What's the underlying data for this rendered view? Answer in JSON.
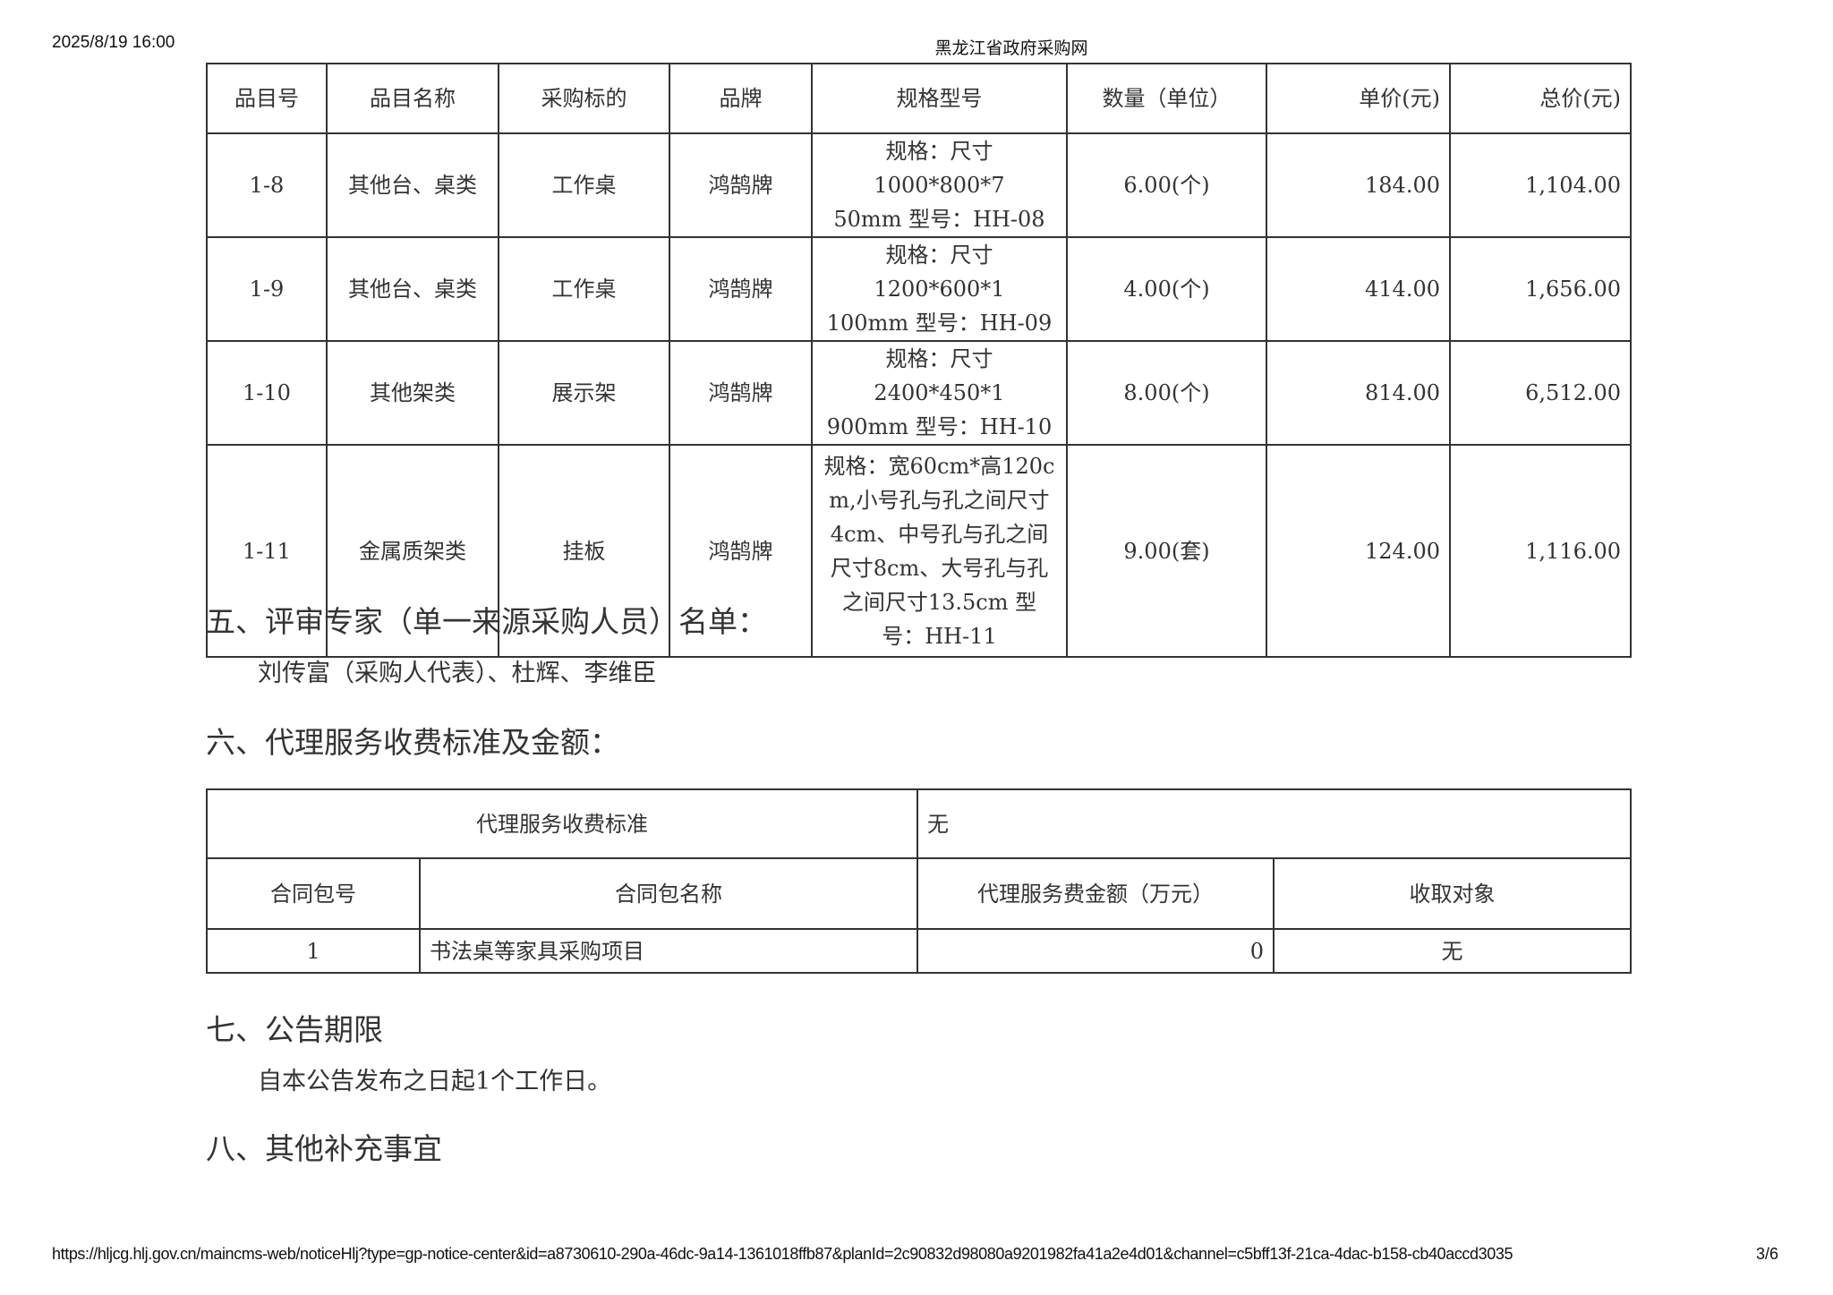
{
  "header": {
    "datetime": "2025/8/19 16:00",
    "site_title": "黑龙江省政府采购网"
  },
  "items_table": {
    "columns": [
      "品目号",
      "品目名称",
      "采购标的",
      "品牌",
      "规格型号",
      "数量（单位）",
      "单价(元)",
      "总价(元)"
    ],
    "rows": [
      {
        "no": "1-8",
        "name": "其他台、桌类",
        "target": "工作桌",
        "brand": "鸿鹄牌",
        "spec": [
          "规格：尺寸1000*800*7",
          "50mm 型号：HH-08"
        ],
        "qty": "6.00(个)",
        "unit_price": "184.00",
        "total": "1,104.00"
      },
      {
        "no": "1-9",
        "name": "其他台、桌类",
        "target": "工作桌",
        "brand": "鸿鹄牌",
        "spec": [
          "规格：尺寸1200*600*1",
          "100mm 型号：HH-09"
        ],
        "qty": "4.00(个)",
        "unit_price": "414.00",
        "total": "1,656.00"
      },
      {
        "no": "1-10",
        "name": "其他架类",
        "target": "展示架",
        "brand": "鸿鹄牌",
        "spec": [
          "规格：尺寸2400*450*1",
          "900mm 型号：HH-10"
        ],
        "qty": "8.00(个)",
        "unit_price": "814.00",
        "total": "6,512.00"
      },
      {
        "no": "1-11",
        "name": "金属质架类",
        "target": "挂板",
        "brand": "鸿鹄牌",
        "spec": [
          "规格：宽60cm*高120c",
          "m,小号孔与孔之间尺寸",
          "4cm、中号孔与孔之间",
          "尺寸8cm、大号孔与孔",
          "之间尺寸13.5cm 型",
          "号：HH-11"
        ],
        "qty": "9.00(套)",
        "unit_price": "124.00",
        "total": "1,116.00"
      }
    ]
  },
  "section5": {
    "title": "五、评审专家（单一来源采购人员）名单：",
    "body": "刘传富（采购人代表）、杜辉、李维臣"
  },
  "section6": {
    "title": "六、代理服务收费标准及金额：",
    "fee_standard_label": "代理服务收费标准",
    "fee_standard_value": "无",
    "columns": [
      "合同包号",
      "合同包名称",
      "代理服务费金额（万元）",
      "收取对象"
    ],
    "row": {
      "no": "1",
      "name": "书法桌等家具采购项目",
      "amount": "0",
      "payer": "无"
    }
  },
  "section7": {
    "title": "七、公告期限",
    "body": "自本公告发布之日起1个工作日。"
  },
  "section8": {
    "title": "八、其他补充事宜"
  },
  "footer": {
    "url": "https://hljcg.hlj.gov.cn/maincms-web/noticeHlj?type=gp-notice-center&id=a8730610-290a-46dc-9a14-1361018ffb87&planId=2c90832d98080a9201982fa41a2e4d01&channel=c5bff13f-21ca-4dac-b158-cb40accd3035",
    "page": "3/6"
  }
}
